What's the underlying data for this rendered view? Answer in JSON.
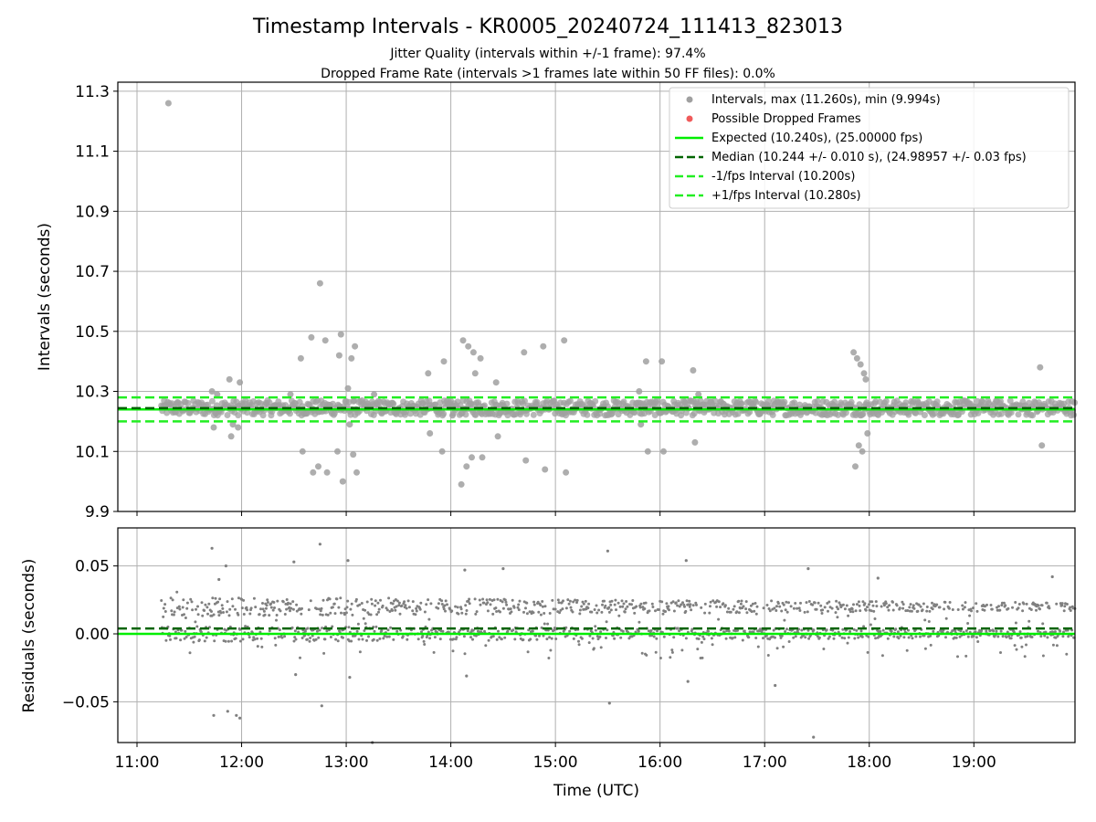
{
  "title": "Timestamp Intervals - KR0005_20240724_111413_823013",
  "subtitle_lines": [
    "Jitter Quality (intervals within +/-1 frame): 97.4%",
    "Dropped Frame Rate (intervals >1 frames late within 50 FF files): 0.0%"
  ],
  "colors": {
    "points": "#a0a0a0",
    "residual_points": "#808080",
    "dropped": "#f05a5a",
    "expected": "#00ee00",
    "median": "#006400",
    "bounds": "#22ee22",
    "grid": "#b0b0b0"
  },
  "chart_data": [
    {
      "type": "scatter",
      "name": "intervals",
      "ylabel": "Intervals (seconds)",
      "ylim": [
        9.9,
        11.33
      ],
      "xlim": [
        "10:49",
        "19:58"
      ],
      "yticks": [
        "9.9",
        "10.1",
        "10.3",
        "10.5",
        "10.7",
        "10.9",
        "11.1",
        "11.3"
      ],
      "ytick_values": [
        9.9,
        10.1,
        10.3,
        10.5,
        10.7,
        10.9,
        11.1,
        11.3
      ],
      "grid": true,
      "legend_position": "top-right",
      "legend": [
        "Intervals, max (11.260s), min (9.994s)",
        "Possible Dropped Frames",
        "Expected (10.240s), (25.00000 fps)",
        "Median (10.244 +/- 0.010 s), (24.98957 +/- 0.03 fps)",
        "-1/fps Interval (10.200s)",
        "+1/fps Interval (10.280s)"
      ],
      "expected": 10.24,
      "median": 10.244,
      "lower_bound": 10.2,
      "upper_bound": 10.28,
      "x_start": "11:14",
      "x_end": "19:58",
      "interval_seconds": 10.24,
      "typical_range": [
        10.22,
        10.27
      ],
      "outliers": [
        [
          "11:18",
          11.26
        ],
        [
          "11:43",
          10.3
        ],
        [
          "11:44",
          10.18
        ],
        [
          "11:46",
          10.29
        ],
        [
          "11:53",
          10.34
        ],
        [
          "11:54",
          10.15
        ],
        [
          "11:55",
          10.19
        ],
        [
          "11:58",
          10.18
        ],
        [
          "11:59",
          10.33
        ],
        [
          "12:28",
          10.29
        ],
        [
          "12:34",
          10.41
        ],
        [
          "12:35",
          10.1
        ],
        [
          "12:40",
          10.48
        ],
        [
          "12:41",
          10.03
        ],
        [
          "12:44",
          10.05
        ],
        [
          "12:45",
          10.66
        ],
        [
          "12:48",
          10.47
        ],
        [
          "12:49",
          10.03
        ],
        [
          "12:55",
          10.1
        ],
        [
          "12:56",
          10.42
        ],
        [
          "12:57",
          10.49
        ],
        [
          "12:58",
          10.0
        ],
        [
          "13:01",
          10.31
        ],
        [
          "13:02",
          10.19
        ],
        [
          "13:03",
          10.41
        ],
        [
          "13:04",
          10.09
        ],
        [
          "13:05",
          10.45
        ],
        [
          "13:06",
          10.03
        ],
        [
          "13:16",
          10.29
        ],
        [
          "13:47",
          10.36
        ],
        [
          "13:48",
          10.16
        ],
        [
          "13:55",
          10.1
        ],
        [
          "13:56",
          10.4
        ],
        [
          "14:01",
          10.22
        ],
        [
          "14:06",
          9.99
        ],
        [
          "14:07",
          10.47
        ],
        [
          "14:09",
          10.05
        ],
        [
          "14:10",
          10.45
        ],
        [
          "14:12",
          10.08
        ],
        [
          "14:13",
          10.43
        ],
        [
          "14:14",
          10.36
        ],
        [
          "14:17",
          10.41
        ],
        [
          "14:18",
          10.08
        ],
        [
          "14:26",
          10.33
        ],
        [
          "14:27",
          10.15
        ],
        [
          "14:42",
          10.43
        ],
        [
          "14:43",
          10.07
        ],
        [
          "14:53",
          10.45
        ],
        [
          "14:54",
          10.04
        ],
        [
          "15:05",
          10.47
        ],
        [
          "15:06",
          10.03
        ],
        [
          "15:48",
          10.3
        ],
        [
          "15:49",
          10.19
        ],
        [
          "15:52",
          10.4
        ],
        [
          "15:53",
          10.1
        ],
        [
          "16:01",
          10.4
        ],
        [
          "16:02",
          10.1
        ],
        [
          "16:19",
          10.37
        ],
        [
          "16:20",
          10.13
        ],
        [
          "16:22",
          10.29
        ],
        [
          "17:51",
          10.43
        ],
        [
          "17:52",
          10.05
        ],
        [
          "17:53",
          10.41
        ],
        [
          "17:54",
          10.12
        ],
        [
          "17:55",
          10.39
        ],
        [
          "17:56",
          10.1
        ],
        [
          "17:57",
          10.36
        ],
        [
          "17:58",
          10.34
        ],
        [
          "17:59",
          10.16
        ],
        [
          "19:38",
          10.38
        ],
        [
          "19:39",
          10.12
        ]
      ]
    },
    {
      "type": "scatter",
      "name": "residuals",
      "ylabel": "Residuals (seconds)",
      "xlabel": "Time (UTC)",
      "ylim": [
        -0.08,
        0.078
      ],
      "xlim": [
        "10:49",
        "19:58"
      ],
      "yticks": [
        "−0.05",
        "0.00",
        "0.05"
      ],
      "ytick_values": [
        -0.05,
        0.0,
        0.05
      ],
      "xticks": [
        "11:00",
        "12:00",
        "13:00",
        "14:00",
        "15:00",
        "16:00",
        "17:00",
        "18:00",
        "19:00"
      ],
      "grid": true,
      "expected": 0.0,
      "median": 0.004,
      "typical_levels": [
        0.0,
        0.02
      ],
      "outliers": [
        [
          "11:43",
          0.063
        ],
        [
          "11:44",
          -0.06
        ],
        [
          "11:47",
          0.04
        ],
        [
          "11:51",
          0.05
        ],
        [
          "11:52",
          -0.057
        ],
        [
          "11:57",
          -0.06
        ],
        [
          "11:59",
          -0.062
        ],
        [
          "12:30",
          0.053
        ],
        [
          "12:31",
          -0.03
        ],
        [
          "12:45",
          0.066
        ],
        [
          "12:46",
          -0.053
        ],
        [
          "13:01",
          0.054
        ],
        [
          "13:02",
          -0.032
        ],
        [
          "13:15",
          -0.08
        ],
        [
          "14:08",
          0.047
        ],
        [
          "14:09",
          -0.031
        ],
        [
          "14:30",
          0.048
        ],
        [
          "15:30",
          0.061
        ],
        [
          "15:31",
          -0.051
        ],
        [
          "16:15",
          0.054
        ],
        [
          "16:16",
          -0.035
        ],
        [
          "17:06",
          -0.038
        ],
        [
          "17:25",
          0.048
        ],
        [
          "17:28",
          -0.076
        ],
        [
          "18:05",
          0.041
        ],
        [
          "19:45",
          0.042
        ]
      ]
    }
  ]
}
